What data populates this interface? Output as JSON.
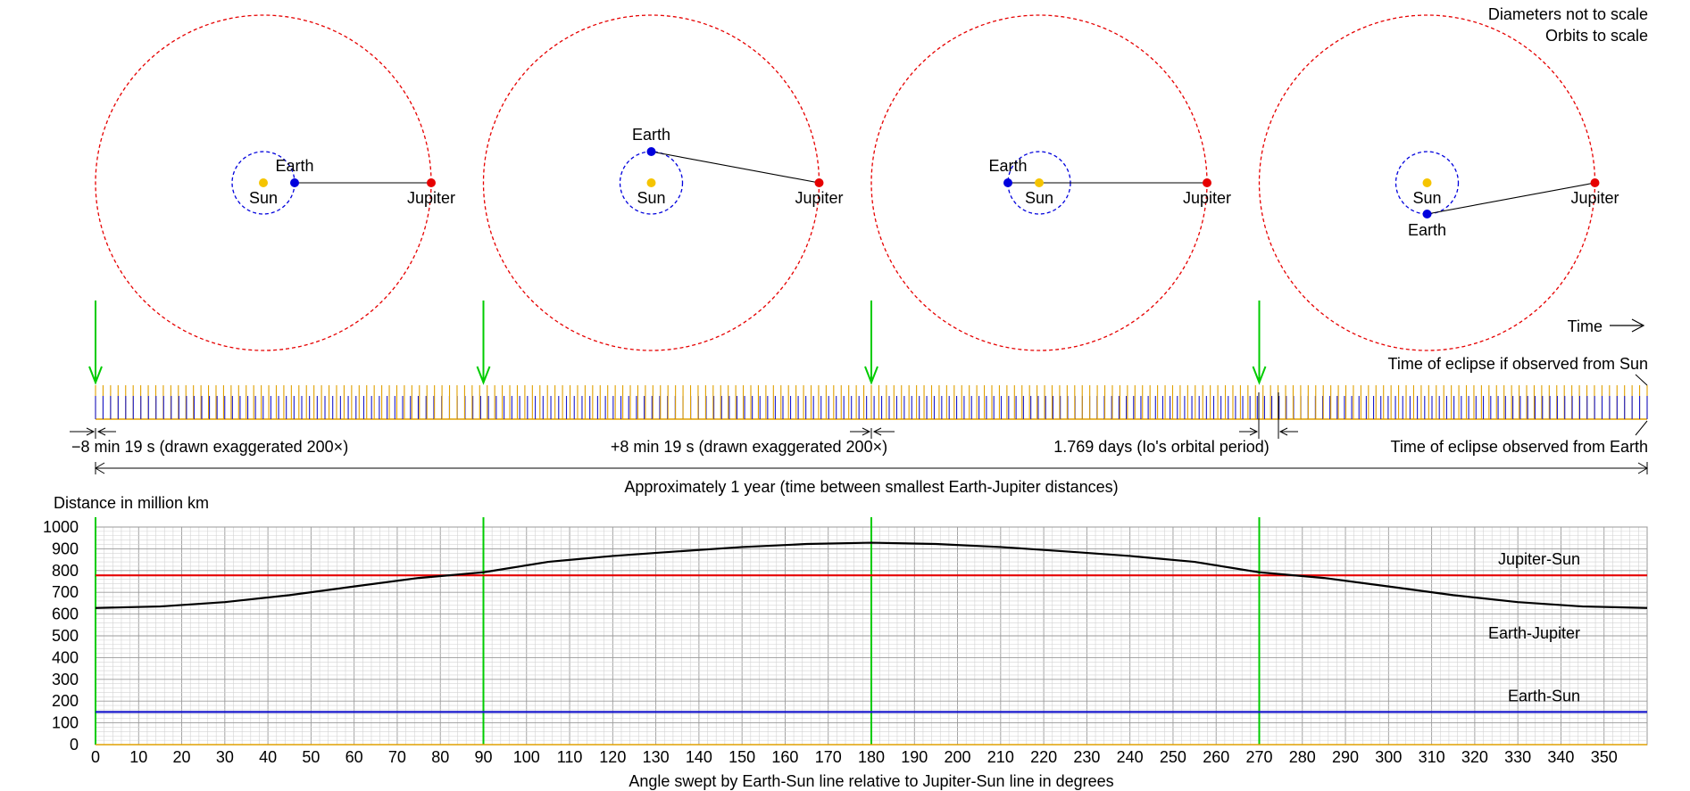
{
  "notes": {
    "diameters": "Diameters not to scale",
    "orbits": "Orbits to scale"
  },
  "orbit_panels": [
    {
      "sun_label": "Sun",
      "earth_label": "Earth",
      "jupiter_label": "Jupiter",
      "earth_angle_deg": 0
    },
    {
      "sun_label": "Sun",
      "earth_label": "Earth",
      "jupiter_label": "Jupiter",
      "earth_angle_deg": 90
    },
    {
      "sun_label": "Sun",
      "earth_label": "Earth",
      "jupiter_label": "Jupiter",
      "earth_angle_deg": 180
    },
    {
      "sun_label": "Sun",
      "earth_label": "Earth",
      "jupiter_label": "Jupiter",
      "earth_angle_deg": 270
    }
  ],
  "timeline": {
    "time_label": "Time",
    "sun_eclipse_label": "Time of eclipse if observed from Sun",
    "earth_eclipse_label": "Time of eclipse observed from Earth",
    "minus_label": "−8 min 19 s (drawn exaggerated 200×)",
    "plus_label": "+8 min 19 s (drawn exaggerated 200×)",
    "period_label": "1.769 days (Io's orbital period)",
    "year_label": "Approximately 1 year (time between smallest Earth-Jupiter distances)"
  },
  "colors": {
    "sun": "#f5c400",
    "earth": "#0000dd",
    "jupiter": "#e60000",
    "marker": "#00cc00",
    "earth_sun_line": "#1a1acc",
    "jupiter_sun_line": "#e60000",
    "earth_jupiter_line": "#000000",
    "sun_eclipse_tick": "#e0a000",
    "earth_eclipse_tick": "#1a1acc"
  },
  "chart_data": {
    "type": "line",
    "ylabel": "Distance in million km",
    "xlabel": "Angle swept by Earth-Sun line relative to Jupiter-Sun line in degrees",
    "xlim": [
      0,
      360
    ],
    "ylim": [
      0,
      1000
    ],
    "xticks": [
      0,
      10,
      20,
      30,
      40,
      50,
      60,
      70,
      80,
      90,
      100,
      110,
      120,
      130,
      140,
      150,
      160,
      170,
      180,
      190,
      200,
      210,
      220,
      230,
      240,
      250,
      260,
      270,
      280,
      290,
      300,
      310,
      320,
      330,
      340,
      350
    ],
    "yticks": [
      0,
      100,
      200,
      300,
      400,
      500,
      600,
      700,
      800,
      900,
      1000
    ],
    "markers": [
      0,
      90,
      180,
      270
    ],
    "series": [
      {
        "name": "Jupiter-Sun",
        "color": "#e60000",
        "constant": 778
      },
      {
        "name": "Earth-Sun",
        "color": "#1a1acc",
        "constant": 150
      },
      {
        "name": "Earth-Jupiter",
        "color": "#000000",
        "x": [
          0,
          15,
          30,
          45,
          60,
          75,
          90,
          105,
          120,
          135,
          150,
          165,
          180,
          195,
          210,
          225,
          240,
          255,
          270,
          285,
          300,
          315,
          330,
          345,
          360
        ],
        "values": [
          628,
          635,
          655,
          687,
          727,
          766,
          792,
          840,
          867,
          888,
          908,
          922,
          928,
          922,
          908,
          888,
          867,
          840,
          792,
          766,
          727,
          687,
          655,
          635,
          628
        ]
      }
    ]
  }
}
